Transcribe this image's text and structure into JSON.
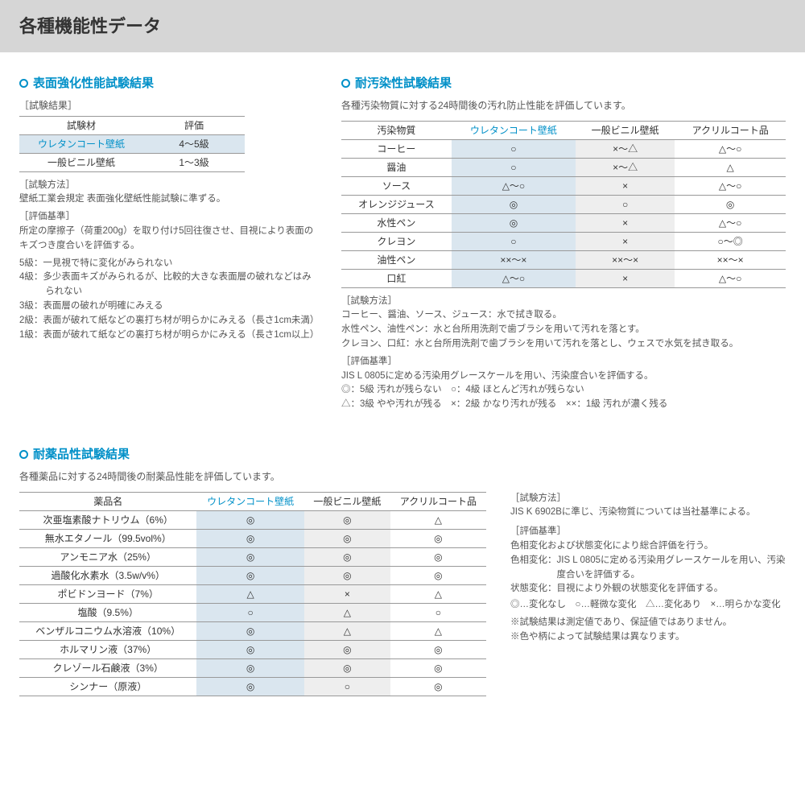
{
  "page_title": "各種機能性データ",
  "colors": {
    "accent": "#0090c8",
    "hl_blue": "#dae6ef",
    "hl_grey": "#eeeeee",
    "border": "#999999",
    "text": "#333333",
    "header_bg": "#d6d6d6"
  },
  "surface": {
    "title": "表面強化性能試験結果",
    "result_label": "［試験結果］",
    "headers": [
      "試験材",
      "評価"
    ],
    "rows": [
      {
        "name": "ウレタンコート壁紙",
        "val": "4～5級",
        "hl": true
      },
      {
        "name": "一般ビニル壁紙",
        "val": "1～3級",
        "hl": false
      }
    ],
    "method_label": "［試験方法］",
    "method_text": "壁紙工業会規定 表面強化壁紙性能試験に準ずる。",
    "criteria_label": "［評価基準］",
    "criteria_text": "所定の摩擦子（荷重200g）を取り付け5回往復させ、目視により表面のキズつき度合いを評価する。",
    "grades": [
      "5級：一見視で特に変化がみられない",
      "4級：多少表面キズがみられるが、比較的大きな表面層の破れなどはみられない",
      "3級：表面層の破れが明確にみえる",
      "2級：表面が破れて紙などの裏打ち材が明らかにみえる（長さ1cm未満）",
      "1級：表面が破れて紙などの裏打ち材が明らかにみえる（長さ1cm以上）"
    ]
  },
  "stain": {
    "title": "耐汚染性試験結果",
    "desc": "各種汚染物質に対する24時間後の汚れ防止性能を評価しています。",
    "headers": [
      "汚染物質",
      "ウレタンコート壁紙",
      "一般ビニル壁紙",
      "アクリルコート品"
    ],
    "rows": [
      [
        "コーヒー",
        "○",
        "×～△",
        "△～○"
      ],
      [
        "醤油",
        "○",
        "×～△",
        "△"
      ],
      [
        "ソース",
        "△～○",
        "×",
        "△～○"
      ],
      [
        "オレンジジュース",
        "◎",
        "○",
        "◎"
      ],
      [
        "水性ペン",
        "◎",
        "×",
        "△～○"
      ],
      [
        "クレヨン",
        "○",
        "×",
        "○～◎"
      ],
      [
        "油性ペン",
        "××～×",
        "××～×",
        "××～×"
      ],
      [
        "口紅",
        "△～○",
        "×",
        "△～○"
      ]
    ],
    "method_label": "［試験方法］",
    "method_lines": [
      "コーヒー、醤油、ソース、ジュース：水で拭き取る。",
      "水性ペン、油性ペン：水と台所用洗剤で歯ブラシを用いて汚れを落とす。",
      "クレヨン、口紅：水と台所用洗剤で歯ブラシを用いて汚れを落とし、ウェスで水気を拭き取る。"
    ],
    "criteria_label": "［評価基準］",
    "criteria_text": "JIS L 0805に定める汚染用グレースケールを用い、汚染度合いを評価する。",
    "legend1": "◎：5級 汚れが残らない　○：4級 ほとんど汚れが残らない",
    "legend2": "△：3級 やや汚れが残る　×：2級 かなり汚れが残る　××：1級 汚れが濃く残る"
  },
  "chem": {
    "title": "耐薬品性試験結果",
    "desc": "各種薬品に対する24時間後の耐薬品性能を評価しています。",
    "headers": [
      "薬品名",
      "ウレタンコート壁紙",
      "一般ビニル壁紙",
      "アクリルコート品"
    ],
    "rows": [
      [
        "次亜塩素酸ナトリウム（6%）",
        "◎",
        "◎",
        "△"
      ],
      [
        "無水エタノール（99.5vol%）",
        "◎",
        "◎",
        "◎"
      ],
      [
        "アンモニア水（25%）",
        "◎",
        "◎",
        "◎"
      ],
      [
        "過酸化水素水（3.5w/v%）",
        "◎",
        "◎",
        "◎"
      ],
      [
        "ポビドンヨード（7%）",
        "△",
        "×",
        "△"
      ],
      [
        "塩酸（9.5%）",
        "○",
        "△",
        "○"
      ],
      [
        "ベンザルコニウム水溶液（10%）",
        "◎",
        "△",
        "△"
      ],
      [
        "ホルマリン液（37%）",
        "◎",
        "◎",
        "◎"
      ],
      [
        "クレゾール石鹸液（3%）",
        "◎",
        "◎",
        "◎"
      ],
      [
        "シンナー（原液）",
        "◎",
        "○",
        "◎"
      ]
    ],
    "method_label": "［試験方法］",
    "method_text": "JIS K 6902Bに準じ、汚染物質については当社基準による。",
    "criteria_label": "［評価基準］",
    "criteria_lines": [
      "色相変化および状態変化により総合評価を行う。",
      "色相変化：JIS L 0805に定める汚染用グレースケールを用い、汚染度合いを評価する。",
      "状態変化：目視により外観の状態変化を評価する。"
    ],
    "legend": "◎…変化なし　○…軽微な変化　△…変化あり　×…明らかな変化",
    "footnote1": "※試験結果は測定値であり、保証値ではありません。",
    "footnote2": "※色や柄によって試験結果は異なります。"
  }
}
